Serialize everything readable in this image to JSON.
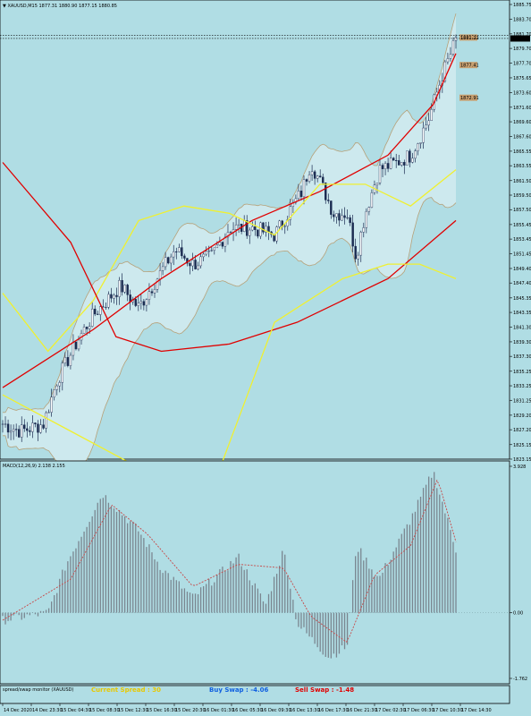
{
  "header": {
    "symbol_line": "XAUUSD,M15  1877.31 1880.90 1877.15 1880.85"
  },
  "macd_label": "MACD(12,26,9) 2.138 2.155",
  "monitor_label": "spread/swap monitor (XAUUSD)",
  "swaps": {
    "current": "Current Spread :  30",
    "buy": "Buy Swap : -4.06",
    "sell": "Sell Swap : -1.48"
  },
  "colors": {
    "background": "#b0dde4",
    "candle": "#1a2a50",
    "bollinger": "#b7a179",
    "ma_red": "#e00000",
    "ma_yellow": "#f0f030",
    "macd_hist": "#7a8690",
    "macd_signal": "#c84848",
    "current_spread": "#e8c800",
    "buy_swap": "#1060e0",
    "sell_swap": "#e00000",
    "price_tag": "#c8a070"
  },
  "chart_data": [
    {
      "type": "candlestick",
      "title": "XAUUSD,M15  1877.31 1880.90 1877.15 1880.85",
      "ylim": [
        1823.15,
        1885.75
      ],
      "y_ticks": [
        "1885.75",
        "1883.70",
        "1881.70",
        "1879.70",
        "1877.70",
        "1875.65",
        "1873.60",
        "1871.60",
        "1869.60",
        "1867.60",
        "1865.55",
        "1863.55",
        "1861.50",
        "1859.50",
        "1857.50",
        "1855.45",
        "1853.45",
        "1851.45",
        "1849.40",
        "1847.40",
        "1845.35",
        "1843.35",
        "1841.30",
        "1839.30",
        "1837.30",
        "1835.25",
        "1833.25",
        "1831.25",
        "1829.20",
        "1827.20",
        "1825.15",
        "1823.15"
      ],
      "current_price": "1881.07",
      "price_tags": [
        {
          "label": "1881.07",
          "value": 1881.07
        },
        {
          "label": "1881.22",
          "value": 1881.2
        },
        {
          "label": "1877.41",
          "value": 1877.41
        },
        {
          "label": "1872.91",
          "value": 1872.91
        }
      ],
      "x_ticks": [
        "14 Dec 2020",
        "14 Dec 23:30",
        "15 Dec 04:30",
        "15 Dec 08:30",
        "15 Dec 12:30",
        "15 Dec 16:30",
        "15 Dec 20:30",
        "16 Dec 01:30",
        "16 Dec 05:30",
        "16 Dec 09:30",
        "16 Dec 13:30",
        "16 Dec 17:30",
        "16 Dec 21:30",
        "17 Dec 02:30",
        "17 Dec 06:30",
        "17 Dec 10:30",
        "17 Dec 14:30"
      ],
      "close_path": [
        [
          0,
          1828
        ],
        [
          0.04,
          1827
        ],
        [
          0.09,
          1828
        ],
        [
          0.12,
          1834
        ],
        [
          0.17,
          1840
        ],
        [
          0.2,
          1843
        ],
        [
          0.26,
          1847
        ],
        [
          0.3,
          1844
        ],
        [
          0.34,
          1848
        ],
        [
          0.38,
          1852
        ],
        [
          0.42,
          1850
        ],
        [
          0.46,
          1851
        ],
        [
          0.5,
          1855
        ],
        [
          0.55,
          1855
        ],
        [
          0.6,
          1854
        ],
        [
          0.62,
          1856
        ],
        [
          0.66,
          1860
        ],
        [
          0.68,
          1864
        ],
        [
          0.71,
          1860
        ],
        [
          0.73,
          1857
        ],
        [
          0.76,
          1857
        ],
        [
          0.78,
          1851
        ],
        [
          0.8,
          1857
        ],
        [
          0.83,
          1863
        ],
        [
          0.87,
          1864
        ],
        [
          0.9,
          1865
        ],
        [
          0.94,
          1870
        ],
        [
          0.97,
          1876
        ],
        [
          1,
          1880.85
        ]
      ],
      "indicators": [
        {
          "name": "MA red (fast)",
          "points": [
            [
              0,
              1833
            ],
            [
              0.2,
              1841
            ],
            [
              0.35,
              1848
            ],
            [
              0.55,
              1856
            ],
            [
              0.7,
              1860
            ],
            [
              0.85,
              1865
            ],
            [
              0.95,
              1872
            ],
            [
              1,
              1879
            ]
          ]
        },
        {
          "name": "MA yellow (fast)",
          "points": [
            [
              0,
              1846
            ],
            [
              0.1,
              1838
            ],
            [
              0.2,
              1845
            ],
            [
              0.3,
              1856
            ],
            [
              0.4,
              1858
            ],
            [
              0.5,
              1857
            ],
            [
              0.6,
              1854
            ],
            [
              0.7,
              1861
            ],
            [
              0.8,
              1861
            ],
            [
              0.9,
              1858
            ],
            [
              1,
              1863
            ]
          ]
        },
        {
          "name": "MA red (slow)",
          "points": [
            [
              0,
              1864
            ],
            [
              0.15,
              1853
            ],
            [
              0.25,
              1840
            ],
            [
              0.35,
              1838
            ],
            [
              0.5,
              1839
            ],
            [
              0.65,
              1842
            ],
            [
              0.85,
              1848
            ],
            [
              1,
              1856
            ]
          ]
        },
        {
          "name": "MA yellow (slow)",
          "points": [
            [
              0,
              1832
            ],
            [
              0.15,
              1827
            ],
            [
              0.3,
              1822
            ],
            [
              0.48,
              1822
            ],
            [
              0.6,
              1842
            ],
            [
              0.75,
              1848
            ],
            [
              0.85,
              1850
            ],
            [
              0.92,
              1850
            ],
            [
              1,
              1848
            ]
          ]
        }
      ]
    },
    {
      "type": "bar",
      "title": "MACD(12,26,9) 2.138 2.155",
      "ylim": [
        -1.762,
        3.928
      ],
      "y_ticks": [
        "3.928",
        "0.00",
        "-1.762"
      ],
      "histogram_path": [
        [
          0,
          -0.2
        ],
        [
          0.1,
          0
        ],
        [
          0.14,
          1.3
        ],
        [
          0.22,
          3.2
        ],
        [
          0.3,
          2.2
        ],
        [
          0.35,
          1.2
        ],
        [
          0.42,
          0.4
        ],
        [
          0.52,
          1.5
        ],
        [
          0.58,
          0.2
        ],
        [
          0.62,
          1.7
        ],
        [
          0.65,
          -0.3
        ],
        [
          0.72,
          -1.2
        ],
        [
          0.76,
          -0.9
        ],
        [
          0.78,
          1.8
        ],
        [
          0.83,
          0.9
        ],
        [
          0.9,
          2.5
        ],
        [
          0.95,
          3.8
        ],
        [
          1,
          1.7
        ]
      ],
      "signal_path": [
        [
          0,
          -0.2
        ],
        [
          0.15,
          0.9
        ],
        [
          0.24,
          2.9
        ],
        [
          0.32,
          2.1
        ],
        [
          0.42,
          0.7
        ],
        [
          0.52,
          1.3
        ],
        [
          0.62,
          1.2
        ],
        [
          0.68,
          -0.1
        ],
        [
          0.76,
          -0.8
        ],
        [
          0.82,
          1.0
        ],
        [
          0.9,
          1.8
        ],
        [
          0.96,
          3.6
        ],
        [
          1,
          1.9
        ]
      ]
    }
  ]
}
